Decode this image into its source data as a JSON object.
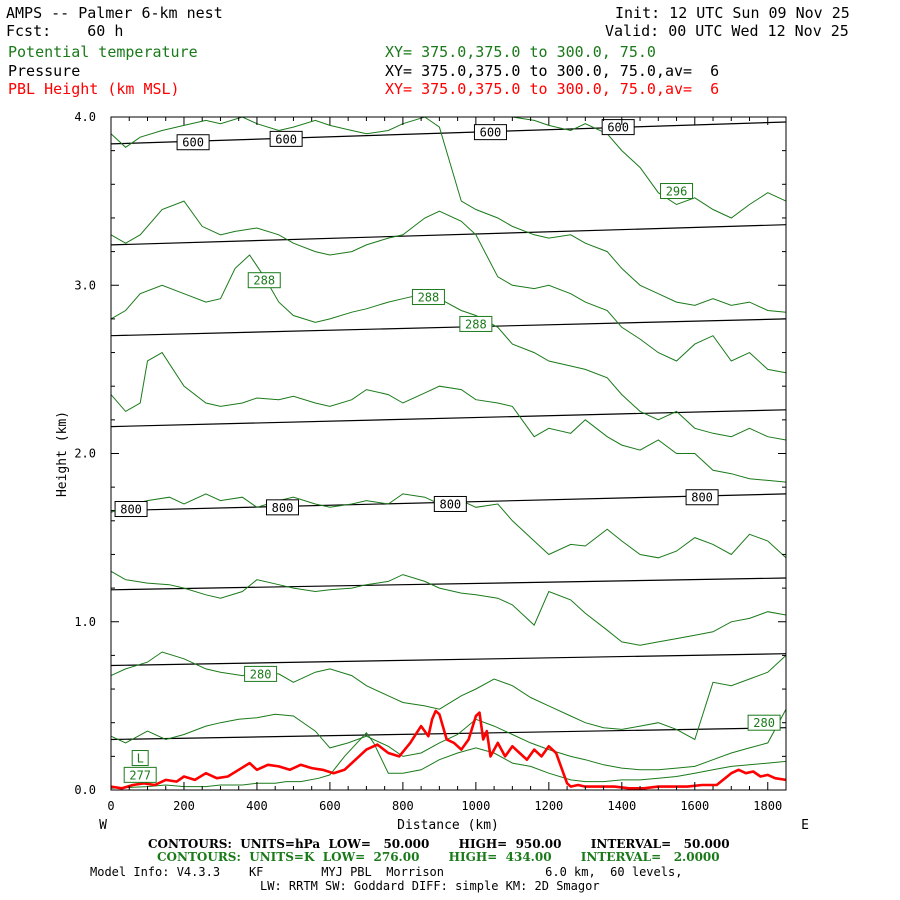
{
  "header": {
    "title": "AMPS -- Palmer 6-km nest",
    "fcst": "Fcst:    60 h",
    "init": "Init: 12 UTC Sun 09 Nov 25",
    "valid": "Valid: 00 UTC Wed 12 Nov 25",
    "legend": [
      {
        "label": "Potential temperature",
        "xy": "XY= 375.0,375.0 to 300.0, 75.0"
      },
      {
        "label": "Pressure",
        "xy": "XY= 375.0,375.0 to 300.0, 75.0,av=  6"
      },
      {
        "label": "PBL Height (km MSL)",
        "xy": "XY= 375.0,375.0 to 300.0, 75.0,av=  6"
      }
    ]
  },
  "footer": {
    "contours_hpa": "CONTOURS:  UNITS=hPa  LOW=   50.000       HIGH=  950.00       INTERVAL=   50.000",
    "contours_k": "CONTOURS:  UNITS=K  LOW=  276.00       HIGH=  434.00       INTERVAL=   2.0000",
    "model_info": "Model Info: V4.3.3    KF        MYJ PBL  Morrison              6.0 km,  60 levels,",
    "physics": "LW: RRTM SW: Goddard DIFF: simple KM: 2D Smagor"
  },
  "chart_data": {
    "type": "line",
    "xlabel": "Distance (km)",
    "ylabel": "Height (km)",
    "xlim": [
      0,
      1850
    ],
    "ylim": [
      0,
      4.0
    ],
    "x_ticks": [
      0,
      200,
      400,
      600,
      800,
      1000,
      1200,
      1400,
      1600,
      1800
    ],
    "y_ticks": [
      0.0,
      1.0,
      2.0,
      3.0,
      4.0
    ],
    "y_tick_labels": [
      "0.0",
      "1.0",
      "2.0",
      "3.0",
      "4.0"
    ],
    "west_label": "W",
    "east_label": "E",
    "colors": {
      "theta": "#1a7a1a",
      "pressure": "#000000",
      "pbl": "#ff0000"
    },
    "pressure_isobars": [
      {
        "x": [
          0,
          1850
        ],
        "y": [
          0.74,
          0.81
        ]
      },
      {
        "x": [
          0,
          1850
        ],
        "y": [
          0.3,
          0.37
        ]
      },
      {
        "x": [
          0,
          1850
        ],
        "y": [
          1.19,
          1.26
        ]
      },
      {
        "x": [
          0,
          1850
        ],
        "y": [
          1.66,
          1.76
        ]
      },
      {
        "x": [
          0,
          1850
        ],
        "y": [
          2.16,
          2.26
        ]
      },
      {
        "x": [
          0,
          1850
        ],
        "y": [
          2.7,
          2.8
        ]
      },
      {
        "x": [
          0,
          1850
        ],
        "y": [
          3.24,
          3.36
        ]
      },
      {
        "x": [
          0,
          1850
        ],
        "y": [
          3.84,
          3.97
        ]
      }
    ],
    "pressure_labels": [
      {
        "text": "800",
        "x": 55,
        "y": 1.67
      },
      {
        "text": "800",
        "x": 470,
        "y": 1.68
      },
      {
        "text": "800",
        "x": 930,
        "y": 1.7
      },
      {
        "text": "800",
        "x": 1620,
        "y": 1.74
      },
      {
        "text": "600",
        "x": 225,
        "y": 3.85
      },
      {
        "text": "600",
        "x": 480,
        "y": 3.87
      },
      {
        "text": "600",
        "x": 1040,
        "y": 3.91
      },
      {
        "text": "600",
        "x": 1390,
        "y": 3.94
      }
    ],
    "theta_contours": [
      {
        "x": [
          0,
          100,
          150,
          200,
          260,
          300,
          360,
          400,
          450,
          480,
          520,
          570,
          600,
          640,
          700,
          720,
          760,
          800,
          850,
          900,
          950,
          1000,
          1050,
          1100,
          1150,
          1200,
          1260,
          1300,
          1350,
          1400,
          1450,
          1500,
          1550,
          1600,
          1650,
          1700,
          1750,
          1800,
          1850
        ],
        "y": [
          0.01,
          0.02,
          0.03,
          0.02,
          0.02,
          0.03,
          0.03,
          0.04,
          0.04,
          0.05,
          0.05,
          0.07,
          0.09,
          0.2,
          0.34,
          0.28,
          0.1,
          0.1,
          0.12,
          0.18,
          0.22,
          0.25,
          0.22,
          0.16,
          0.14,
          0.1,
          0.06,
          0.05,
          0.05,
          0.06,
          0.06,
          0.07,
          0.08,
          0.1,
          0.12,
          0.14,
          0.15,
          0.16,
          0.17
        ]
      },
      {
        "x": [
          0,
          40,
          100,
          150,
          200,
          260,
          300,
          350,
          400,
          450,
          500,
          560,
          600,
          650,
          700,
          760,
          800,
          850,
          900,
          950,
          1000,
          1050,
          1100,
          1150,
          1200,
          1260,
          1300,
          1350,
          1400,
          1450,
          1500,
          1550,
          1600,
          1650,
          1700,
          1750,
          1800,
          1850
        ],
        "y": [
          0.32,
          0.28,
          0.35,
          0.3,
          0.33,
          0.38,
          0.4,
          0.42,
          0.43,
          0.45,
          0.44,
          0.35,
          0.25,
          0.28,
          0.32,
          0.26,
          0.2,
          0.22,
          0.28,
          0.33,
          0.42,
          0.38,
          0.33,
          0.28,
          0.24,
          0.2,
          0.18,
          0.15,
          0.13,
          0.12,
          0.12,
          0.13,
          0.14,
          0.18,
          0.22,
          0.25,
          0.28,
          0.48
        ]
      },
      {
        "x": [
          0,
          40,
          100,
          140,
          200,
          260,
          300,
          360,
          400,
          460,
          500,
          560,
          600,
          660,
          700,
          760,
          800,
          860,
          900,
          960,
          1000,
          1050,
          1100,
          1150,
          1200,
          1260,
          1300,
          1350,
          1400,
          1450,
          1500,
          1550,
          1600,
          1650,
          1700,
          1750,
          1800,
          1850
        ],
        "y": [
          0.68,
          0.72,
          0.76,
          0.82,
          0.78,
          0.72,
          0.7,
          0.68,
          0.7,
          0.69,
          0.64,
          0.7,
          0.72,
          0.68,
          0.62,
          0.56,
          0.52,
          0.5,
          0.48,
          0.56,
          0.6,
          0.66,
          0.62,
          0.55,
          0.5,
          0.44,
          0.4,
          0.37,
          0.36,
          0.38,
          0.4,
          0.36,
          0.3,
          0.64,
          0.62,
          0.66,
          0.7,
          0.8
        ]
      },
      {
        "x": [
          0,
          40,
          100,
          160,
          200,
          260,
          300,
          360,
          400,
          460,
          500,
          560,
          600,
          660,
          700,
          760,
          800,
          860,
          900,
          960,
          1000,
          1060,
          1100,
          1160,
          1200,
          1260,
          1300,
          1360,
          1400,
          1450,
          1500,
          1550,
          1600,
          1650,
          1700,
          1750,
          1800,
          1850
        ],
        "y": [
          1.3,
          1.25,
          1.23,
          1.22,
          1.2,
          1.16,
          1.14,
          1.18,
          1.25,
          1.22,
          1.2,
          1.18,
          1.19,
          1.2,
          1.22,
          1.24,
          1.28,
          1.24,
          1.2,
          1.17,
          1.16,
          1.14,
          1.1,
          0.98,
          1.18,
          1.13,
          1.05,
          0.95,
          0.88,
          0.86,
          0.88,
          0.9,
          0.92,
          0.94,
          1.0,
          1.02,
          1.06,
          1.04
        ]
      },
      {
        "x": [
          0,
          60,
          100,
          160,
          200,
          260,
          300,
          360,
          400,
          460,
          500,
          560,
          600,
          660,
          700,
          760,
          800,
          860,
          900,
          960,
          1000,
          1060,
          1100,
          1160,
          1200,
          1260,
          1300,
          1360,
          1400,
          1450,
          1500,
          1550,
          1600,
          1650,
          1700,
          1750,
          1800,
          1850
        ],
        "y": [
          1.65,
          1.7,
          1.72,
          1.74,
          1.7,
          1.76,
          1.72,
          1.74,
          1.68,
          1.72,
          1.74,
          1.7,
          1.68,
          1.7,
          1.72,
          1.7,
          1.76,
          1.74,
          1.7,
          1.72,
          1.68,
          1.7,
          1.6,
          1.48,
          1.4,
          1.46,
          1.45,
          1.55,
          1.48,
          1.4,
          1.38,
          1.42,
          1.5,
          1.46,
          1.4,
          1.52,
          1.48,
          1.38
        ]
      },
      {
        "x": [
          0,
          40,
          80,
          100,
          140,
          200,
          260,
          300,
          360,
          400,
          460,
          500,
          560,
          600,
          660,
          700,
          760,
          800,
          860,
          900,
          960,
          1000,
          1060,
          1100,
          1160,
          1200,
          1260,
          1300,
          1360,
          1400,
          1450,
          1500,
          1550,
          1600,
          1650,
          1700,
          1750,
          1800,
          1850
        ],
        "y": [
          2.35,
          2.25,
          2.3,
          2.55,
          2.6,
          2.4,
          2.3,
          2.28,
          2.3,
          2.33,
          2.32,
          2.34,
          2.3,
          2.28,
          2.32,
          2.38,
          2.35,
          2.3,
          2.36,
          2.4,
          2.38,
          2.32,
          2.3,
          2.28,
          2.1,
          2.15,
          2.12,
          2.2,
          2.1,
          2.05,
          2.02,
          2.08,
          2.0,
          2.0,
          1.9,
          1.88,
          1.85,
          1.84,
          1.83
        ]
      },
      {
        "x": [
          0,
          40,
          80,
          140,
          200,
          260,
          300,
          340,
          380,
          420,
          460,
          500,
          560,
          600,
          660,
          700,
          760,
          800,
          860,
          900,
          960,
          1000,
          1060,
          1100,
          1160,
          1200,
          1260,
          1300,
          1360,
          1400,
          1450,
          1500,
          1550,
          1600,
          1650,
          1700,
          1750,
          1800,
          1850
        ],
        "y": [
          2.8,
          2.85,
          2.95,
          3.0,
          2.95,
          2.9,
          2.92,
          3.1,
          3.18,
          3.05,
          2.9,
          2.82,
          2.78,
          2.8,
          2.84,
          2.86,
          2.9,
          2.92,
          2.95,
          2.92,
          2.85,
          2.82,
          2.75,
          2.65,
          2.6,
          2.55,
          2.52,
          2.5,
          2.45,
          2.35,
          2.25,
          2.2,
          2.25,
          2.15,
          2.12,
          2.1,
          2.15,
          2.1,
          2.08
        ]
      },
      {
        "x": [
          0,
          40,
          80,
          140,
          200,
          250,
          300,
          340,
          400,
          460,
          500,
          560,
          600,
          660,
          700,
          760,
          800,
          860,
          900,
          960,
          1000,
          1060,
          1100,
          1160,
          1200,
          1260,
          1300,
          1360,
          1400,
          1450,
          1500,
          1550,
          1600,
          1650,
          1700,
          1750,
          1800,
          1850
        ],
        "y": [
          3.3,
          3.25,
          3.3,
          3.45,
          3.5,
          3.35,
          3.3,
          3.32,
          3.34,
          3.3,
          3.25,
          3.2,
          3.18,
          3.2,
          3.24,
          3.28,
          3.3,
          3.4,
          3.44,
          3.38,
          3.3,
          3.05,
          3.0,
          2.98,
          3.0,
          2.95,
          2.9,
          2.85,
          2.75,
          2.68,
          2.6,
          2.55,
          2.65,
          2.7,
          2.55,
          2.6,
          2.5,
          2.48
        ]
      },
      {
        "x": [
          0,
          40,
          80,
          140,
          200,
          260,
          300,
          360,
          400,
          460,
          500,
          560,
          600,
          660,
          700,
          760,
          800,
          860,
          900,
          960,
          1000,
          1060,
          1100,
          1160,
          1200,
          1260,
          1300,
          1360,
          1400,
          1450,
          1500,
          1550,
          1600,
          1650,
          1700,
          1750,
          1800,
          1850
        ],
        "y": [
          3.9,
          3.82,
          3.88,
          3.92,
          3.95,
          3.98,
          3.96,
          4.0,
          3.96,
          3.92,
          3.94,
          3.98,
          3.95,
          3.92,
          3.9,
          3.92,
          3.96,
          4.0,
          3.94,
          3.5,
          3.45,
          3.4,
          3.35,
          3.3,
          3.28,
          3.3,
          3.25,
          3.2,
          3.1,
          3.0,
          2.95,
          2.9,
          2.88,
          2.92,
          2.88,
          2.9,
          2.85,
          2.84
        ]
      },
      {
        "x": [
          1100,
          1160,
          1200,
          1260,
          1300,
          1360,
          1400,
          1450,
          1500,
          1550,
          1600,
          1650,
          1700,
          1750,
          1800,
          1850
        ],
        "y": [
          4.0,
          3.98,
          3.95,
          3.92,
          3.96,
          3.9,
          3.8,
          3.7,
          3.55,
          3.48,
          3.52,
          3.45,
          3.4,
          3.48,
          3.55,
          3.5
        ]
      }
    ],
    "theta_labels": [
      {
        "text": "288",
        "x": 420,
        "y": 3.03
      },
      {
        "text": "288",
        "x": 870,
        "y": 2.93
      },
      {
        "text": "288",
        "x": 1000,
        "y": 2.77
      },
      {
        "text": "296",
        "x": 1550,
        "y": 3.56
      },
      {
        "text": "280",
        "x": 410,
        "y": 0.69
      },
      {
        "text": "280",
        "x": 1790,
        "y": 0.4
      },
      {
        "text": "L",
        "x": 80,
        "y": 0.19
      },
      {
        "text": "277",
        "x": 80,
        "y": 0.09
      }
    ],
    "pbl_height": {
      "x": [
        0,
        30,
        60,
        90,
        120,
        150,
        180,
        200,
        230,
        260,
        290,
        320,
        350,
        380,
        400,
        430,
        460,
        490,
        520,
        550,
        580,
        610,
        640,
        670,
        700,
        730,
        760,
        790,
        820,
        850,
        870,
        880,
        890,
        900,
        920,
        940,
        960,
        980,
        1000,
        1010,
        1020,
        1030,
        1040,
        1060,
        1080,
        1100,
        1120,
        1140,
        1160,
        1180,
        1200,
        1220,
        1240,
        1250,
        1260,
        1280,
        1300,
        1340,
        1380,
        1420,
        1460,
        1500,
        1540,
        1580,
        1620,
        1660,
        1700,
        1720,
        1740,
        1760,
        1780,
        1800,
        1820,
        1850
      ],
      "y": [
        0.02,
        0.01,
        0.03,
        0.04,
        0.03,
        0.06,
        0.05,
        0.08,
        0.06,
        0.1,
        0.07,
        0.08,
        0.12,
        0.16,
        0.12,
        0.15,
        0.14,
        0.12,
        0.15,
        0.13,
        0.12,
        0.1,
        0.12,
        0.18,
        0.24,
        0.27,
        0.22,
        0.2,
        0.28,
        0.38,
        0.32,
        0.42,
        0.47,
        0.45,
        0.3,
        0.28,
        0.24,
        0.3,
        0.44,
        0.46,
        0.3,
        0.35,
        0.2,
        0.28,
        0.2,
        0.26,
        0.22,
        0.18,
        0.24,
        0.2,
        0.26,
        0.22,
        0.1,
        0.04,
        0.02,
        0.03,
        0.02,
        0.02,
        0.02,
        0.01,
        0.01,
        0.02,
        0.02,
        0.02,
        0.03,
        0.03,
        0.1,
        0.12,
        0.1,
        0.11,
        0.08,
        0.09,
        0.07,
        0.06
      ]
    }
  }
}
